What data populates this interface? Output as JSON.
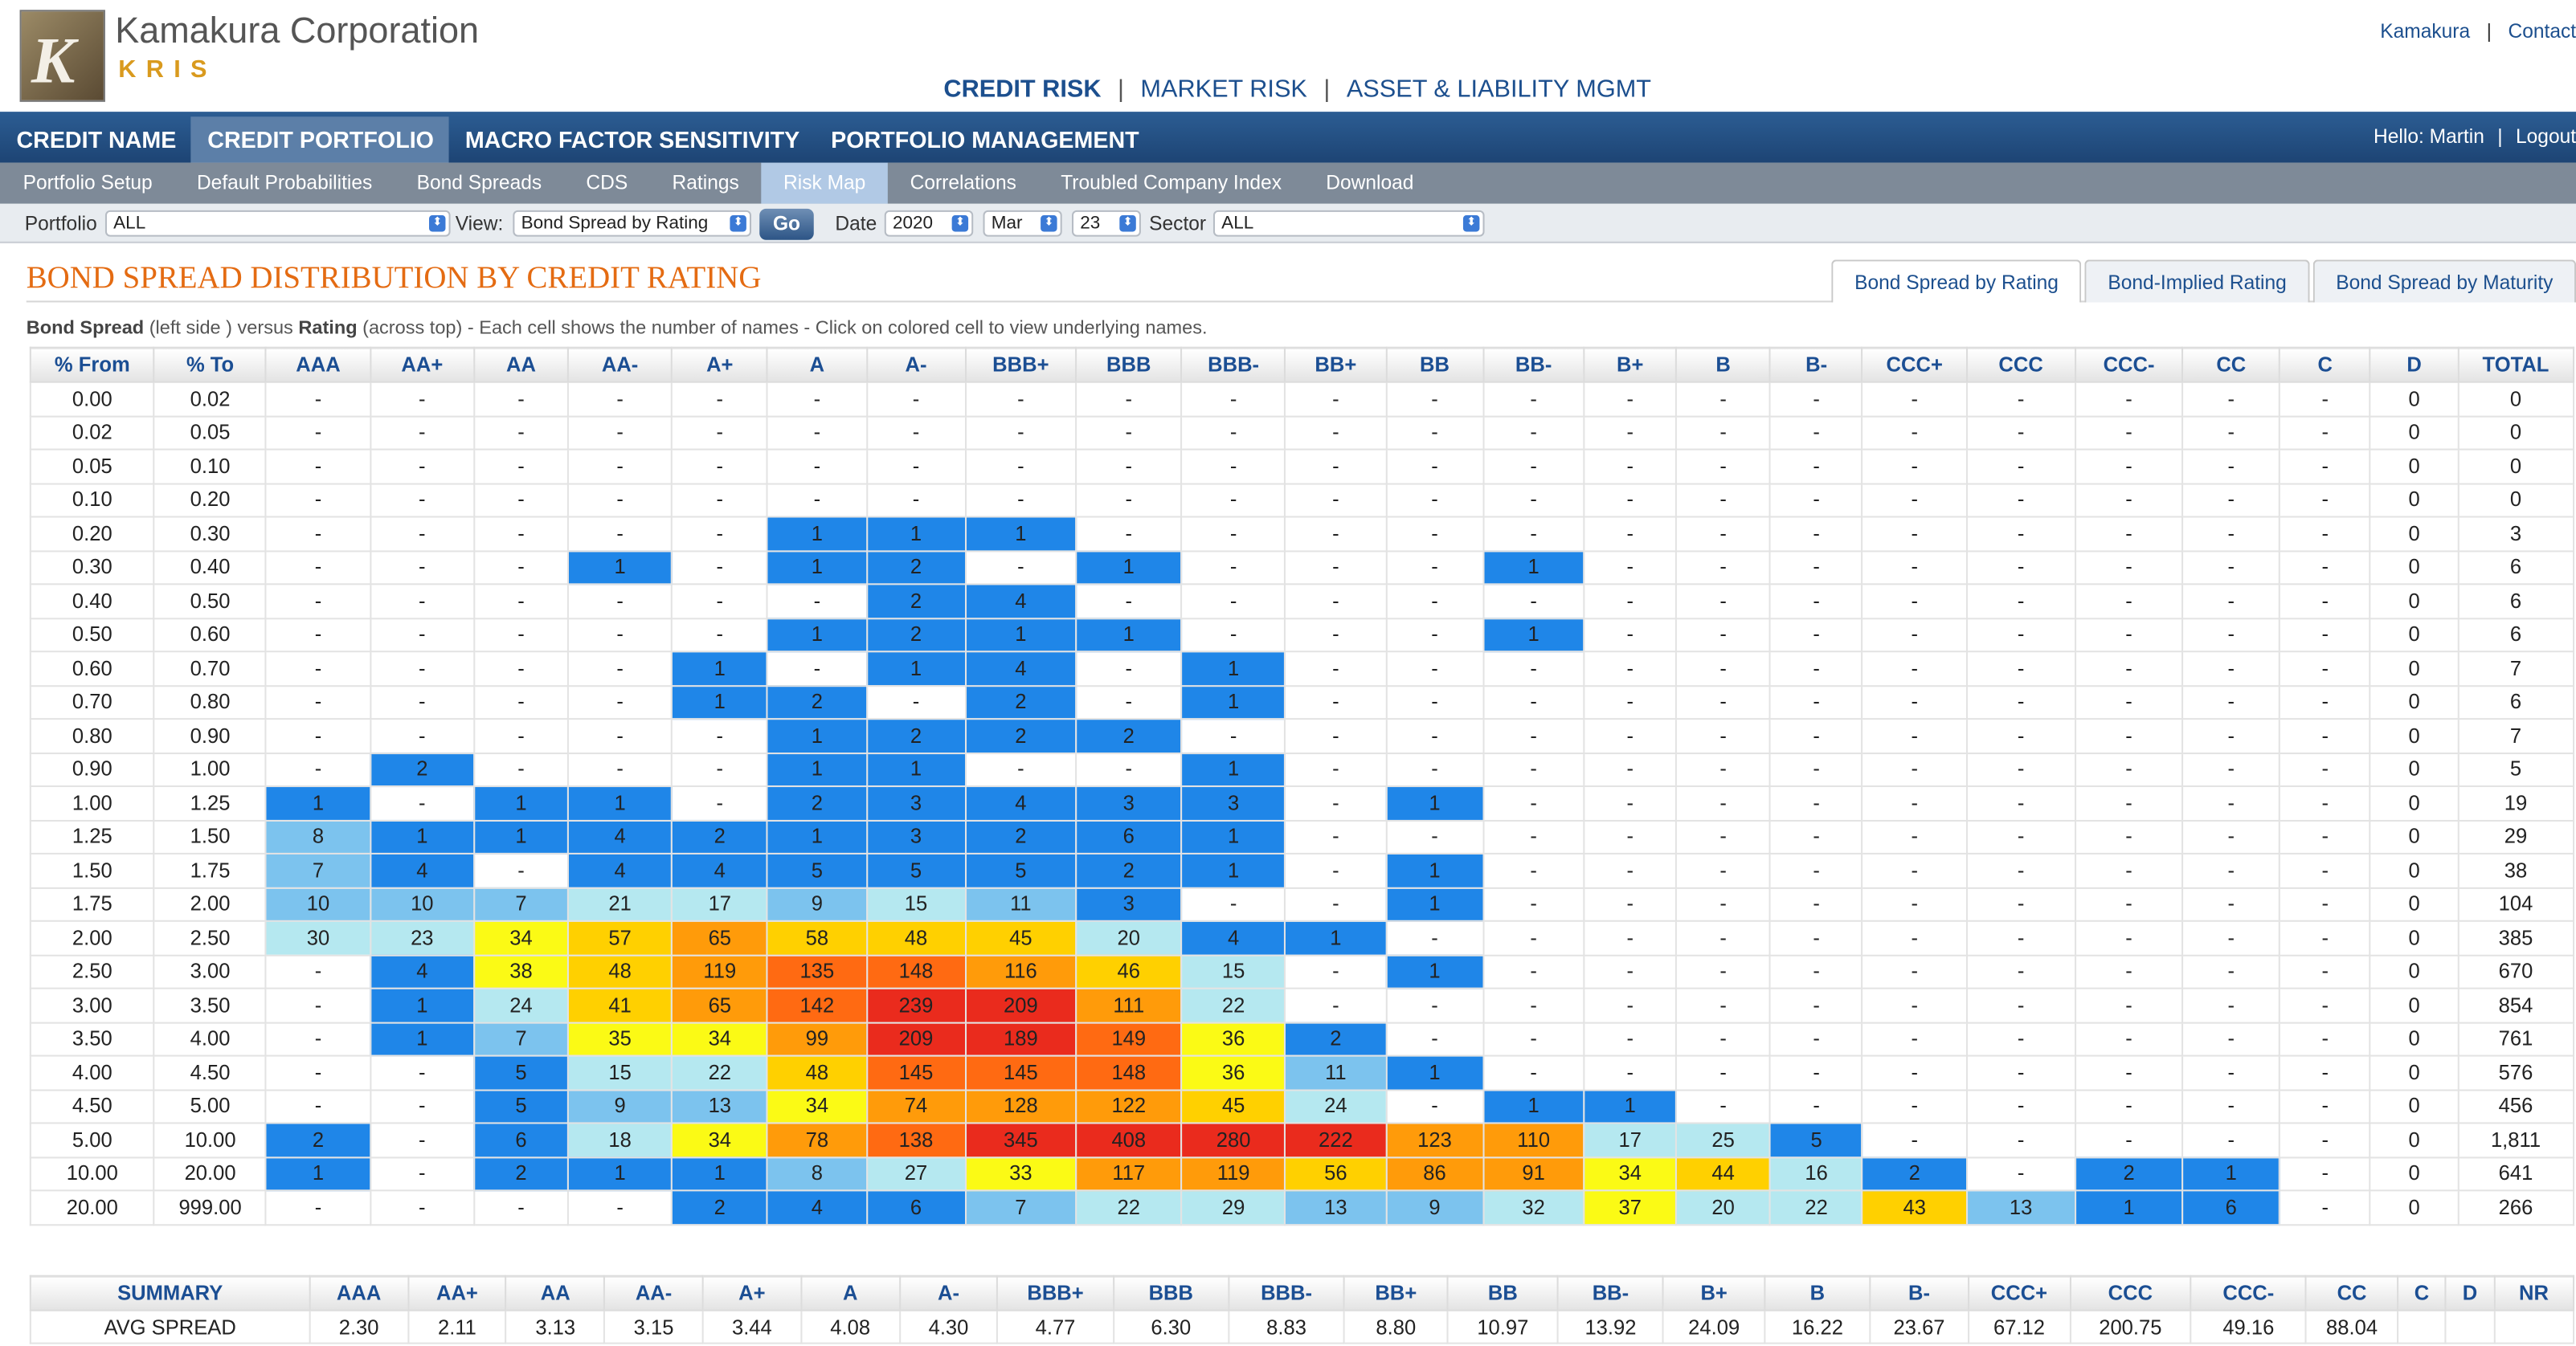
{
  "header": {
    "brand": "Kamakura Corporation",
    "product": "KRIS",
    "top_links": [
      "Kamakura",
      "Contact"
    ],
    "main_nav": [
      "CREDIT RISK",
      "MARKET RISK",
      "ASSET & LIABILITY MGMT"
    ],
    "section_tabs": [
      "CREDIT NAME",
      "CREDIT PORTFOLIO",
      "MACRO FACTOR SENSITIVITY",
      "PORTFOLIO MANAGEMENT"
    ],
    "hello": "Hello: Martin",
    "logout": "Logout",
    "sub_tabs": [
      "Portfolio Setup",
      "Default Probabilities",
      "Bond Spreads",
      "CDS",
      "Ratings",
      "Risk Map",
      "Correlations",
      "Troubled Company Index",
      "Download"
    ]
  },
  "filters": {
    "portfolio_label": "Portfolio",
    "portfolio_value": "ALL",
    "view_label": "View:",
    "view_value": "Bond Spread by Rating",
    "go_label": "Go",
    "date_label": "Date",
    "year": "2020",
    "month": "Mar",
    "day": "23",
    "sector_label": "Sector",
    "sector_value": "ALL"
  },
  "title": "BOND SPREAD DISTRIBUTION BY CREDIT RATING",
  "view_tabs": [
    "Bond Spread by Rating",
    "Bond-Implied Rating",
    "Bond Spread by Maturity"
  ],
  "caption": {
    "b1": "Bond Spread",
    "t1": " (left side ) versus ",
    "b2": "Rating",
    "t2": " (across top) - Each cell shows the number of names - Click on colored cell to view underlying names."
  },
  "colors": {
    "blue": "#1f86e8",
    "lightblue": "#7cc3ee",
    "paleblue": "#b5e8f0",
    "yellow": "#fbfa15",
    "gold": "#ffd000",
    "orange": "#ff9b0a",
    "darkorange": "#ff6a12",
    "red": "#ea2b1d"
  },
  "grid": {
    "headers": [
      "% From",
      "% To",
      "AAA",
      "AA+",
      "AA",
      "AA-",
      "A+",
      "A",
      "A-",
      "BBB+",
      "BBB",
      "BBB-",
      "BB+",
      "BB",
      "BB-",
      "B+",
      "B",
      "B-",
      "CCC+",
      "CCC",
      "CCC-",
      "CC",
      "C",
      "D",
      "TOTAL"
    ],
    "rows": [
      [
        "0.00",
        "0.02",
        "-",
        "-",
        "-",
        "-",
        "-",
        "-",
        "-",
        "-",
        "-",
        "-",
        "-",
        "-",
        "-",
        "-",
        "-",
        "-",
        "-",
        "-",
        "-",
        "-",
        "-",
        "0",
        "0"
      ],
      [
        "0.02",
        "0.05",
        "-",
        "-",
        "-",
        "-",
        "-",
        "-",
        "-",
        "-",
        "-",
        "-",
        "-",
        "-",
        "-",
        "-",
        "-",
        "-",
        "-",
        "-",
        "-",
        "-",
        "-",
        "0",
        "0"
      ],
      [
        "0.05",
        "0.10",
        "-",
        "-",
        "-",
        "-",
        "-",
        "-",
        "-",
        "-",
        "-",
        "-",
        "-",
        "-",
        "-",
        "-",
        "-",
        "-",
        "-",
        "-",
        "-",
        "-",
        "-",
        "0",
        "0"
      ],
      [
        "0.10",
        "0.20",
        "-",
        "-",
        "-",
        "-",
        "-",
        "-",
        "-",
        "-",
        "-",
        "-",
        "-",
        "-",
        "-",
        "-",
        "-",
        "-",
        "-",
        "-",
        "-",
        "-",
        "-",
        "0",
        "0"
      ],
      [
        "0.20",
        "0.30",
        "-",
        "-",
        "-",
        "-",
        "-",
        "1",
        "1",
        "1",
        "-",
        "-",
        "-",
        "-",
        "-",
        "-",
        "-",
        "-",
        "-",
        "-",
        "-",
        "-",
        "-",
        "0",
        "3"
      ],
      [
        "0.30",
        "0.40",
        "-",
        "-",
        "-",
        "1",
        "-",
        "1",
        "2",
        "-",
        "1",
        "-",
        "-",
        "-",
        "1",
        "-",
        "-",
        "-",
        "-",
        "-",
        "-",
        "-",
        "-",
        "0",
        "6"
      ],
      [
        "0.40",
        "0.50",
        "-",
        "-",
        "-",
        "-",
        "-",
        "-",
        "2",
        "4",
        "-",
        "-",
        "-",
        "-",
        "-",
        "-",
        "-",
        "-",
        "-",
        "-",
        "-",
        "-",
        "-",
        "0",
        "6"
      ],
      [
        "0.50",
        "0.60",
        "-",
        "-",
        "-",
        "-",
        "-",
        "1",
        "2",
        "1",
        "1",
        "-",
        "-",
        "-",
        "1",
        "-",
        "-",
        "-",
        "-",
        "-",
        "-",
        "-",
        "-",
        "0",
        "6"
      ],
      [
        "0.60",
        "0.70",
        "-",
        "-",
        "-",
        "-",
        "1",
        "-",
        "1",
        "4",
        "-",
        "1",
        "-",
        "-",
        "-",
        "-",
        "-",
        "-",
        "-",
        "-",
        "-",
        "-",
        "-",
        "0",
        "7"
      ],
      [
        "0.70",
        "0.80",
        "-",
        "-",
        "-",
        "-",
        "1",
        "2",
        "-",
        "2",
        "-",
        "1",
        "-",
        "-",
        "-",
        "-",
        "-",
        "-",
        "-",
        "-",
        "-",
        "-",
        "-",
        "0",
        "6"
      ],
      [
        "0.80",
        "0.90",
        "-",
        "-",
        "-",
        "-",
        "-",
        "1",
        "2",
        "2",
        "2",
        "-",
        "-",
        "-",
        "-",
        "-",
        "-",
        "-",
        "-",
        "-",
        "-",
        "-",
        "-",
        "0",
        "7"
      ],
      [
        "0.90",
        "1.00",
        "-",
        "2",
        "-",
        "-",
        "-",
        "1",
        "1",
        "-",
        "-",
        "1",
        "-",
        "-",
        "-",
        "-",
        "-",
        "-",
        "-",
        "-",
        "-",
        "-",
        "-",
        "0",
        "5"
      ],
      [
        "1.00",
        "1.25",
        "1",
        "-",
        "1",
        "1",
        "-",
        "2",
        "3",
        "4",
        "3",
        "3",
        "-",
        "1",
        "-",
        "-",
        "-",
        "-",
        "-",
        "-",
        "-",
        "-",
        "-",
        "0",
        "19"
      ],
      [
        "1.25",
        "1.50",
        "8",
        "1",
        "1",
        "4",
        "2",
        "1",
        "3",
        "2",
        "6",
        "1",
        "-",
        "-",
        "-",
        "-",
        "-",
        "-",
        "-",
        "-",
        "-",
        "-",
        "-",
        "0",
        "29"
      ],
      [
        "1.50",
        "1.75",
        "7",
        "4",
        "-",
        "4",
        "4",
        "5",
        "5",
        "5",
        "2",
        "1",
        "-",
        "1",
        "-",
        "-",
        "-",
        "-",
        "-",
        "-",
        "-",
        "-",
        "-",
        "0",
        "38"
      ],
      [
        "1.75",
        "2.00",
        "10",
        "10",
        "7",
        "21",
        "17",
        "9",
        "15",
        "11",
        "3",
        "-",
        "-",
        "1",
        "-",
        "-",
        "-",
        "-",
        "-",
        "-",
        "-",
        "-",
        "-",
        "0",
        "104"
      ],
      [
        "2.00",
        "2.50",
        "30",
        "23",
        "34",
        "57",
        "65",
        "58",
        "48",
        "45",
        "20",
        "4",
        "1",
        "-",
        "-",
        "-",
        "-",
        "-",
        "-",
        "-",
        "-",
        "-",
        "-",
        "0",
        "385"
      ],
      [
        "2.50",
        "3.00",
        "-",
        "4",
        "38",
        "48",
        "119",
        "135",
        "148",
        "116",
        "46",
        "15",
        "-",
        "1",
        "-",
        "-",
        "-",
        "-",
        "-",
        "-",
        "-",
        "-",
        "-",
        "0",
        "670"
      ],
      [
        "3.00",
        "3.50",
        "-",
        "1",
        "24",
        "41",
        "65",
        "142",
        "239",
        "209",
        "111",
        "22",
        "-",
        "-",
        "-",
        "-",
        "-",
        "-",
        "-",
        "-",
        "-",
        "-",
        "-",
        "0",
        "854"
      ],
      [
        "3.50",
        "4.00",
        "-",
        "1",
        "7",
        "35",
        "34",
        "99",
        "209",
        "189",
        "149",
        "36",
        "2",
        "-",
        "-",
        "-",
        "-",
        "-",
        "-",
        "-",
        "-",
        "-",
        "-",
        "0",
        "761"
      ],
      [
        "4.00",
        "4.50",
        "-",
        "-",
        "5",
        "15",
        "22",
        "48",
        "145",
        "145",
        "148",
        "36",
        "11",
        "1",
        "-",
        "-",
        "-",
        "-",
        "-",
        "-",
        "-",
        "-",
        "-",
        "0",
        "576"
      ],
      [
        "4.50",
        "5.00",
        "-",
        "-",
        "5",
        "9",
        "13",
        "34",
        "74",
        "128",
        "122",
        "45",
        "24",
        "-",
        "1",
        "1",
        "-",
        "-",
        "-",
        "-",
        "-",
        "-",
        "-",
        "0",
        "456"
      ],
      [
        "5.00",
        "10.00",
        "2",
        "-",
        "6",
        "18",
        "34",
        "78",
        "138",
        "345",
        "408",
        "280",
        "222",
        "123",
        "110",
        "17",
        "25",
        "5",
        "-",
        "-",
        "-",
        "-",
        "-",
        "0",
        "1,811"
      ],
      [
        "10.00",
        "20.00",
        "1",
        "-",
        "2",
        "1",
        "1",
        "8",
        "27",
        "33",
        "117",
        "119",
        "56",
        "86",
        "91",
        "34",
        "44",
        "16",
        "2",
        "-",
        "2",
        "1",
        "-",
        "0",
        "641"
      ],
      [
        "20.00",
        "999.00",
        "-",
        "-",
        "-",
        "-",
        "2",
        "4",
        "6",
        "7",
        "22",
        "29",
        "13",
        "9",
        "32",
        "37",
        "20",
        "22",
        "43",
        "13",
        "1",
        "6",
        "-",
        "0",
        "266"
      ]
    ]
  },
  "summary": {
    "headers": [
      "SUMMARY",
      "AAA",
      "AA+",
      "AA",
      "AA-",
      "A+",
      "A",
      "A-",
      "BBB+",
      "BBB",
      "BBB-",
      "BB+",
      "BB",
      "BB-",
      "B+",
      "B",
      "B-",
      "CCC+",
      "CCC",
      "CCC-",
      "CC",
      "C",
      "D",
      "NR"
    ],
    "rows": [
      [
        "AVG SPREAD",
        "2.30",
        "2.11",
        "3.13",
        "3.15",
        "3.44",
        "4.08",
        "4.30",
        "4.77",
        "6.30",
        "8.83",
        "8.80",
        "10.97",
        "13.92",
        "24.09",
        "16.22",
        "23.67",
        "67.12",
        "200.75",
        "49.16",
        "88.04",
        "",
        "",
        ""
      ]
    ]
  }
}
